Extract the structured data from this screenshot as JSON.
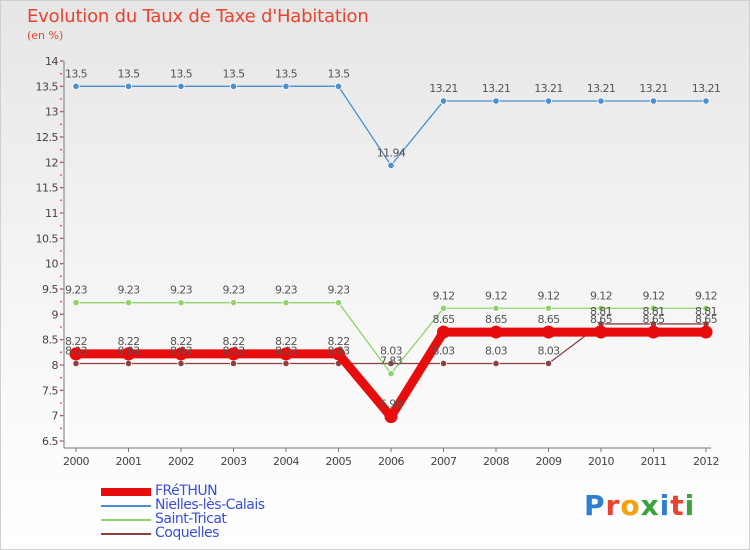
{
  "title": "Evolution du Taux de Taxe d'Habitation",
  "unit": "(en %)",
  "logo": {
    "text": "Proxiti",
    "colors": [
      "#2f7fd1",
      "#e8432e",
      "#f2a20b",
      "#3aa43a",
      "#2f7fd1",
      "#e8432e",
      "#3aa43a"
    ]
  },
  "chart_data": {
    "type": "line",
    "x": [
      2000,
      2001,
      2002,
      2003,
      2004,
      2005,
      2006,
      2007,
      2008,
      2009,
      2010,
      2011,
      2012
    ],
    "ylim": [
      6.5,
      14
    ],
    "yticks": [
      6.5,
      7,
      7.5,
      8,
      8.5,
      9,
      9.5,
      10,
      10.5,
      11,
      11.5,
      12,
      12.5,
      13,
      13.5,
      14
    ],
    "grid": false,
    "legend_position": "bottom-left",
    "series": [
      {
        "name": "FRéTHUN",
        "color": "#e80d0d",
        "values": [
          8.22,
          8.22,
          8.22,
          8.22,
          8.22,
          8.22,
          6.98,
          8.65,
          8.65,
          8.65,
          8.65,
          8.65,
          8.65
        ],
        "labels": [
          "8.22",
          "8.22",
          "8.22",
          "8.22",
          "8.22",
          "8.22",
          "6.98",
          "8.65",
          "8.65",
          "8.65",
          "8.65",
          "8.65",
          "8.65"
        ]
      },
      {
        "name": "Nielles-lès-Calais",
        "color": "#4a8fce",
        "values": [
          13.5,
          13.5,
          13.5,
          13.5,
          13.5,
          13.5,
          11.94,
          13.21,
          13.21,
          13.21,
          13.21,
          13.21,
          13.21
        ],
        "labels": [
          "13.5",
          "13.5",
          "13.5",
          "13.5",
          "13.5",
          "13.5",
          "11.94",
          "13.21",
          "13.21",
          "13.21",
          "13.21",
          "13.21",
          "13.21"
        ]
      },
      {
        "name": "Saint-Tricat",
        "color": "#8fd36a",
        "values": [
          9.23,
          9.23,
          9.23,
          9.23,
          9.23,
          9.23,
          7.83,
          9.12,
          9.12,
          9.12,
          9.12,
          9.12,
          9.12
        ],
        "labels": [
          "9.23",
          "9.23",
          "9.23",
          "9.23",
          "9.23",
          "9.23",
          "7.83",
          "9.12",
          "9.12",
          "9.12",
          "9.12",
          "9.12",
          "9.12"
        ]
      },
      {
        "name": "Coquelles",
        "color": "#8f3f3f",
        "values": [
          8.03,
          8.03,
          8.03,
          8.03,
          8.03,
          8.03,
          8.03,
          8.03,
          8.03,
          8.03,
          8.81,
          8.81,
          8.81
        ],
        "labels": [
          "8.03",
          "8.03",
          "8.03",
          "8.03",
          "8.03",
          "8.03",
          "8.03",
          "8.03",
          "8.03",
          "8.03",
          "8.81",
          "8.81",
          "8.81"
        ]
      }
    ]
  }
}
